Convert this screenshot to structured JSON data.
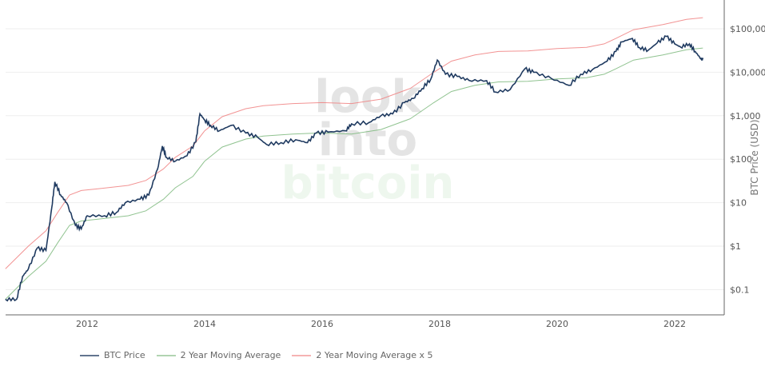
{
  "chart_data": {
    "type": "line",
    "xlabel": "",
    "ylabel": "BTC Price (USD)",
    "y_scale": "log",
    "ylim": [
      0.04,
      400000
    ],
    "xlim": [
      2010.61,
      2022.7
    ],
    "x_ticks": [
      "2012",
      "2014",
      "2016",
      "2018",
      "2020",
      "2022"
    ],
    "y_ticks": [
      {
        "value": 100000,
        "label": "$100,000"
      },
      {
        "value": 10000,
        "label": "$10,000"
      },
      {
        "value": 1000,
        "label": "$1,000"
      },
      {
        "value": 100,
        "label": "$100"
      },
      {
        "value": 10,
        "label": "$10"
      },
      {
        "value": 1,
        "label": "$1"
      },
      {
        "value": 0.1,
        "label": "$0.1"
      }
    ],
    "grid": true,
    "legend_position": "bottom",
    "watermark": [
      "look",
      "into",
      "bitcoin"
    ],
    "series": [
      {
        "name": "BTC Price",
        "color": "#1f3a60",
        "points": [
          [
            2010.61,
            0.06
          ],
          [
            2010.8,
            0.06
          ],
          [
            2010.9,
            0.2
          ],
          [
            2011.0,
            0.3
          ],
          [
            2011.15,
            0.9
          ],
          [
            2011.3,
            0.8
          ],
          [
            2011.4,
            8
          ],
          [
            2011.45,
            30
          ],
          [
            2011.55,
            15
          ],
          [
            2011.65,
            10
          ],
          [
            2011.8,
            3
          ],
          [
            2011.9,
            2.5
          ],
          [
            2012.0,
            5
          ],
          [
            2012.3,
            5
          ],
          [
            2012.5,
            6
          ],
          [
            2012.65,
            10
          ],
          [
            2012.9,
            12
          ],
          [
            2013.05,
            15
          ],
          [
            2013.2,
            60
          ],
          [
            2013.28,
            200
          ],
          [
            2013.35,
            110
          ],
          [
            2013.5,
            90
          ],
          [
            2013.7,
            120
          ],
          [
            2013.85,
            250
          ],
          [
            2013.92,
            1100
          ],
          [
            2014.0,
            800
          ],
          [
            2014.1,
            600
          ],
          [
            2014.25,
            450
          ],
          [
            2014.45,
            600
          ],
          [
            2014.7,
            400
          ],
          [
            2014.9,
            320
          ],
          [
            2015.05,
            220
          ],
          [
            2015.3,
            240
          ],
          [
            2015.55,
            280
          ],
          [
            2015.75,
            240
          ],
          [
            2015.9,
            400
          ],
          [
            2016.1,
            420
          ],
          [
            2016.4,
            450
          ],
          [
            2016.5,
            650
          ],
          [
            2016.8,
            700
          ],
          [
            2017.0,
            1000
          ],
          [
            2017.2,
            1100
          ],
          [
            2017.4,
            2000
          ],
          [
            2017.55,
            2500
          ],
          [
            2017.7,
            4200
          ],
          [
            2017.85,
            7000
          ],
          [
            2017.96,
            19000
          ],
          [
            2018.1,
            9000
          ],
          [
            2018.3,
            8000
          ],
          [
            2018.5,
            6500
          ],
          [
            2018.8,
            6400
          ],
          [
            2018.95,
            3500
          ],
          [
            2019.2,
            4000
          ],
          [
            2019.45,
            12000
          ],
          [
            2019.6,
            10000
          ],
          [
            2019.9,
            7200
          ],
          [
            2020.2,
            5000
          ],
          [
            2020.4,
            9000
          ],
          [
            2020.6,
            11500
          ],
          [
            2020.85,
            18000
          ],
          [
            2021.0,
            30000
          ],
          [
            2021.1,
            50000
          ],
          [
            2021.28,
            60000
          ],
          [
            2021.4,
            37000
          ],
          [
            2021.55,
            32000
          ],
          [
            2021.7,
            47000
          ],
          [
            2021.86,
            67000
          ],
          [
            2022.0,
            45000
          ],
          [
            2022.1,
            38000
          ],
          [
            2022.25,
            45000
          ],
          [
            2022.35,
            30000
          ],
          [
            2022.45,
            20000
          ],
          [
            2022.48,
            20000
          ]
        ]
      },
      {
        "name": "2 Year Moving Average",
        "color": "#7db87d",
        "points": [
          [
            2010.61,
            0.06
          ],
          [
            2011.0,
            0.2
          ],
          [
            2011.3,
            0.45
          ],
          [
            2011.5,
            1.2
          ],
          [
            2011.7,
            3
          ],
          [
            2011.9,
            3.8
          ],
          [
            2012.2,
            4.2
          ],
          [
            2012.7,
            5
          ],
          [
            2013.0,
            6.5
          ],
          [
            2013.3,
            12
          ],
          [
            2013.5,
            22
          ],
          [
            2013.8,
            40
          ],
          [
            2014.0,
            90
          ],
          [
            2014.3,
            190
          ],
          [
            2014.7,
            290
          ],
          [
            2015.0,
            340
          ],
          [
            2015.5,
            380
          ],
          [
            2016.0,
            400
          ],
          [
            2016.5,
            380
          ],
          [
            2017.0,
            480
          ],
          [
            2017.5,
            850
          ],
          [
            2017.9,
            2000
          ],
          [
            2018.2,
            3600
          ],
          [
            2018.6,
            5000
          ],
          [
            2019.0,
            6000
          ],
          [
            2019.5,
            6200
          ],
          [
            2020.0,
            7000
          ],
          [
            2020.5,
            7500
          ],
          [
            2020.8,
            9000
          ],
          [
            2021.0,
            12000
          ],
          [
            2021.3,
            19000
          ],
          [
            2021.8,
            25000
          ],
          [
            2022.2,
            33000
          ],
          [
            2022.48,
            36000
          ]
        ]
      },
      {
        "name": "2 Year Moving Average x 5",
        "color": "#f08080",
        "points": [
          [
            2010.61,
            0.3
          ],
          [
            2011.0,
            1
          ],
          [
            2011.3,
            2.25
          ],
          [
            2011.5,
            6
          ],
          [
            2011.7,
            15
          ],
          [
            2011.9,
            19
          ],
          [
            2012.2,
            21
          ],
          [
            2012.7,
            25
          ],
          [
            2013.0,
            32.5
          ],
          [
            2013.3,
            60
          ],
          [
            2013.5,
            110
          ],
          [
            2013.8,
            200
          ],
          [
            2014.0,
            450
          ],
          [
            2014.3,
            950
          ],
          [
            2014.7,
            1450
          ],
          [
            2015.0,
            1700
          ],
          [
            2015.5,
            1900
          ],
          [
            2016.0,
            2000
          ],
          [
            2016.5,
            1900
          ],
          [
            2017.0,
            2400
          ],
          [
            2017.5,
            4250
          ],
          [
            2017.9,
            10000
          ],
          [
            2018.2,
            18000
          ],
          [
            2018.6,
            25000
          ],
          [
            2019.0,
            30000
          ],
          [
            2019.5,
            31000
          ],
          [
            2020.0,
            35000
          ],
          [
            2020.5,
            37500
          ],
          [
            2020.8,
            45000
          ],
          [
            2021.0,
            60000
          ],
          [
            2021.3,
            95000
          ],
          [
            2021.8,
            125000
          ],
          [
            2022.2,
            165000
          ],
          [
            2022.48,
            180000
          ]
        ]
      }
    ]
  }
}
